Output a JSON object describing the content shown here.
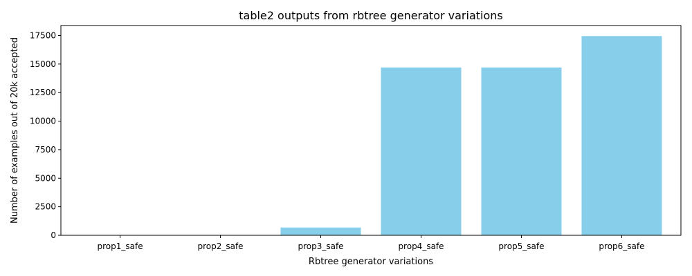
{
  "chart_data": {
    "type": "bar",
    "title": "table2 outputs from rbtree generator variations",
    "xlabel": "Rbtree generator variations",
    "ylabel": "Number of examples out of 20k accepted",
    "categories": [
      "prop1_safe",
      "prop2_safe",
      "prop3_safe",
      "prop4_safe",
      "prop5_safe",
      "prop6_safe"
    ],
    "values": [
      0,
      0,
      680,
      14700,
      14700,
      17450
    ],
    "ylim": [
      0,
      18375
    ],
    "yticks": [
      0,
      2500,
      5000,
      7500,
      10000,
      12500,
      15000,
      17500
    ],
    "ytick_labels": [
      "0",
      "2500",
      "5000",
      "7500",
      "10000",
      "12500",
      "15000",
      "17500"
    ],
    "bar_color": "#87ceeb",
    "grid": false,
    "legend": "none"
  }
}
